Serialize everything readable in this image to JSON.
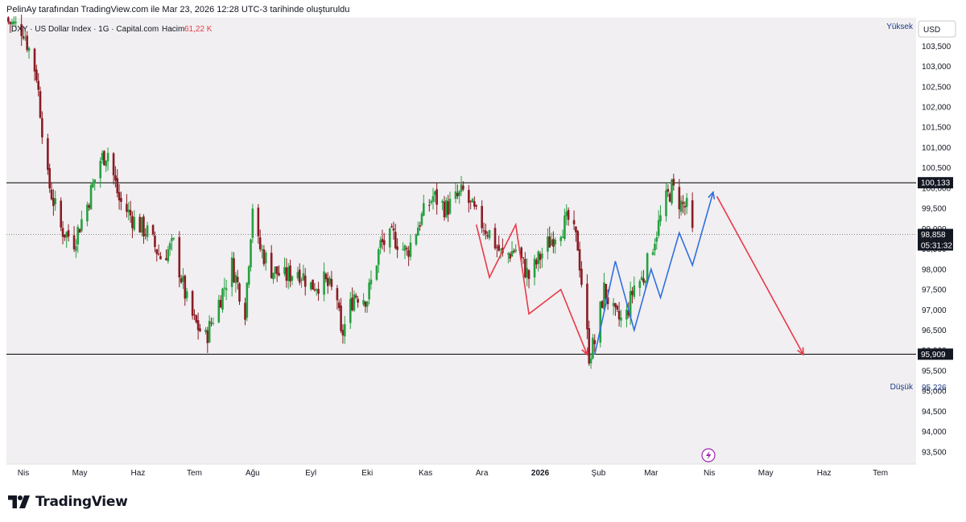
{
  "header": {
    "caption": "PelinAy tarafından TradingView.com ile Mar 23, 2026 12:28 UTC-3 tarihinde oluşturuldu"
  },
  "legend": {
    "symbol": "DXY · US Dollar Index · 1G · Capital.com",
    "volume_label": "Hacim",
    "volume_value": "61,22 K"
  },
  "price_scale": {
    "currency": "USD",
    "high_label": "Yüksek",
    "low_label": "Düşük",
    "low_value": "95,226",
    "ticks": [
      "103,500",
      "103,000",
      "102,500",
      "102,000",
      "101,500",
      "101,000",
      "100,500",
      "100,000",
      "99,500",
      "99,000",
      "98,500",
      "98,000",
      "97,500",
      "97,000",
      "96,500",
      "96,000",
      "95,500",
      "95,000",
      "94,500",
      "94,000",
      "93,500"
    ],
    "resistance_label": "100,133",
    "support_label": "95,909",
    "last_price_label": "98,858",
    "countdown_label": "05:31:32"
  },
  "time_scale": {
    "labels": [
      "Nis",
      "May",
      "Haz",
      "Tem",
      "Ağu",
      "Eyl",
      "Eki",
      "Kas",
      "Ara",
      "2026",
      "Şub",
      "Mar",
      "Nis",
      "May",
      "Haz",
      "Tem"
    ]
  },
  "footer": {
    "brand": "TradingView"
  },
  "colors": {
    "up": "#26a041",
    "down": "#8a1c24",
    "red_path": "#e8394a",
    "blue_path": "#2f6fe0",
    "level_line": "#000000",
    "plot_bg": "#f1eff1"
  },
  "chart_data": {
    "type": "candlestick",
    "title": "DXY · US Dollar Index · 1G · Capital.com",
    "ylim": [
      93.2,
      104.2
    ],
    "x_range": [
      "2025-03-23",
      "2026-07-20"
    ],
    "horizontal_levels": [
      100.133,
      95.909
    ],
    "last_price": 98.858,
    "low_price": 95.226,
    "anchors": [
      [
        "2025-03-24",
        104.1
      ],
      [
        "2025-04-01",
        103.9
      ],
      [
        "2025-04-08",
        102.8
      ],
      [
        "2025-04-14",
        100.2
      ],
      [
        "2025-04-21",
        99.0
      ],
      [
        "2025-04-28",
        98.7
      ],
      [
        "2025-05-05",
        99.6
      ],
      [
        "2025-05-12",
        100.7
      ],
      [
        "2025-05-16",
        100.9
      ],
      [
        "2025-05-22",
        99.7
      ],
      [
        "2025-05-30",
        99.2
      ],
      [
        "2025-06-06",
        98.9
      ],
      [
        "2025-06-13",
        98.3
      ],
      [
        "2025-06-20",
        98.6
      ],
      [
        "2025-06-27",
        97.2
      ],
      [
        "2025-07-01",
        96.7
      ],
      [
        "2025-07-07",
        96.3
      ],
      [
        "2025-07-14",
        97.2
      ],
      [
        "2025-07-21",
        98.1
      ],
      [
        "2025-07-28",
        97.0
      ],
      [
        "2025-08-01",
        99.6
      ],
      [
        "2025-08-04",
        98.6
      ],
      [
        "2025-08-11",
        98.0
      ],
      [
        "2025-08-18",
        97.8
      ],
      [
        "2025-08-25",
        98.0
      ],
      [
        "2025-09-01",
        97.6
      ],
      [
        "2025-09-08",
        97.7
      ],
      [
        "2025-09-15",
        97.3
      ],
      [
        "2025-09-17",
        96.3
      ],
      [
        "2025-09-24",
        97.4
      ],
      [
        "2025-10-01",
        97.3
      ],
      [
        "2025-10-08",
        98.6
      ],
      [
        "2025-10-15",
        98.8
      ],
      [
        "2025-10-22",
        98.4
      ],
      [
        "2025-10-29",
        99.2
      ],
      [
        "2025-11-05",
        99.8
      ],
      [
        "2025-11-12",
        99.5
      ],
      [
        "2025-11-21",
        99.9
      ],
      [
        "2025-11-28",
        99.3
      ],
      [
        "2025-12-05",
        98.9
      ],
      [
        "2025-12-12",
        98.3
      ],
      [
        "2025-12-19",
        98.5
      ],
      [
        "2025-12-26",
        97.8
      ],
      [
        "2026-01-02",
        98.4
      ],
      [
        "2026-01-09",
        98.9
      ],
      [
        "2026-01-16",
        99.2
      ],
      [
        "2026-01-21",
        98.6
      ],
      [
        "2026-01-27",
        95.9
      ],
      [
        "2026-01-30",
        96.2
      ],
      [
        "2026-02-04",
        97.5
      ],
      [
        "2026-02-10",
        96.8
      ],
      [
        "2026-02-15",
        96.7
      ],
      [
        "2026-02-20",
        97.6
      ],
      [
        "2026-02-25",
        97.8
      ],
      [
        "2026-03-03",
        98.8
      ],
      [
        "2026-03-09",
        99.7
      ],
      [
        "2026-03-12",
        100.0
      ],
      [
        "2026-03-17",
        99.6
      ],
      [
        "2026-03-20",
        99.5
      ],
      [
        "2026-03-23",
        98.858
      ]
    ],
    "projection_red": [
      [
        "2025-11-28",
        99.1
      ],
      [
        "2025-12-05",
        97.8
      ],
      [
        "2025-12-19",
        99.1
      ],
      [
        "2025-12-26",
        96.9
      ],
      [
        "2026-01-12",
        97.5
      ],
      [
        "2026-01-26",
        95.9
      ]
    ],
    "projection_blue": [
      [
        "2026-01-30",
        95.9
      ],
      [
        "2026-02-10",
        98.2
      ],
      [
        "2026-02-20",
        96.5
      ],
      [
        "2026-03-01",
        98.0
      ],
      [
        "2026-03-06",
        97.3
      ],
      [
        "2026-03-16",
        98.9
      ],
      [
        "2026-03-23",
        98.1
      ],
      [
        "2026-04-03",
        99.9
      ]
    ],
    "projection_red_forecast": [
      [
        "2026-04-05",
        99.8
      ],
      [
        "2026-05-21",
        95.9
      ]
    ]
  }
}
